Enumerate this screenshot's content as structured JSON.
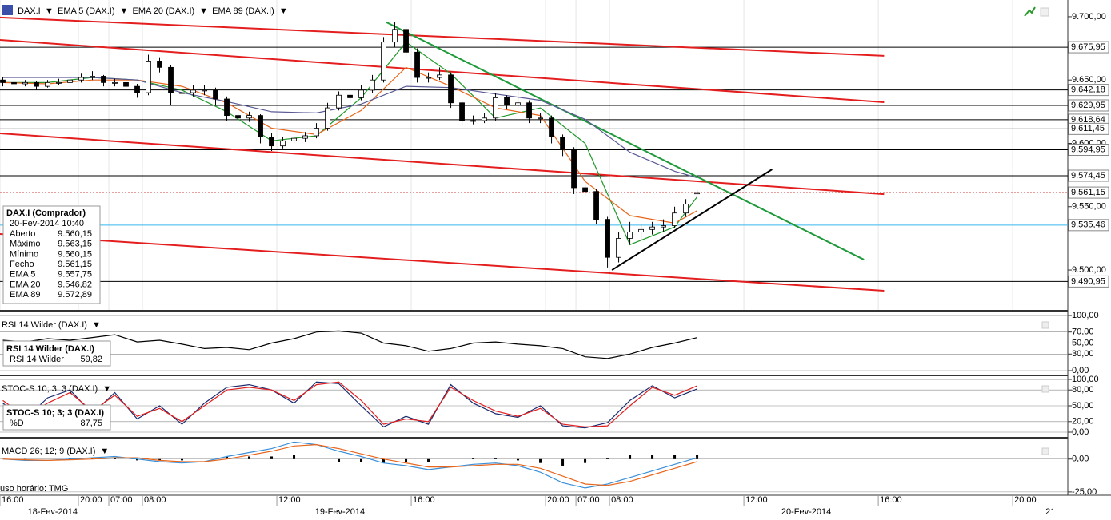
{
  "chart_data": {
    "type": "candlestick",
    "symbol": "DAX.I",
    "up_color": "#ffffff",
    "down_color": "#000000",
    "x": [
      0.5,
      2.5,
      4.5,
      6.5,
      8.5,
      10.5,
      12.5,
      14.5,
      16.5,
      18.5,
      20.5,
      22.5,
      24.5,
      26.5,
      28.5,
      30.5,
      32.5,
      34.5,
      36.5,
      38.5,
      40.5,
      42.5,
      44.5,
      46.5,
      48.5,
      50.5,
      52.5,
      54.5,
      56.5,
      58.5,
      60.5,
      62.5,
      64.5,
      66.5,
      68.5,
      70.5,
      72.5,
      74.5,
      76.5,
      78.5,
      80.5,
      82.5,
      84.5,
      86.5,
      88.5,
      90.5,
      92.5,
      94.5,
      96.5,
      98.5,
      100.5,
      102.5,
      104.5,
      106.5,
      108.5,
      110.5,
      112.5,
      114.5,
      116.5,
      118.5,
      120.5,
      122.5,
      124.5
    ],
    "ohlc": [
      [
        9650,
        9652,
        9645,
        9648
      ],
      [
        9648,
        9650,
        9644,
        9647
      ],
      [
        9647,
        9650,
        9645,
        9648
      ],
      [
        9648,
        9649,
        9642,
        9645
      ],
      [
        9645,
        9650,
        9644,
        9648
      ],
      [
        9648,
        9651,
        9646,
        9648
      ],
      [
        9648,
        9653,
        9647,
        9650
      ],
      [
        9650,
        9655,
        9648,
        9652
      ],
      [
        9652,
        9657,
        9650,
        9653
      ],
      [
        9653,
        9654,
        9645,
        9648
      ],
      [
        9648,
        9651,
        9645,
        9648
      ],
      [
        9648,
        9650,
        9642,
        9645
      ],
      [
        9645,
        9647,
        9636,
        9640
      ],
      [
        9640,
        9670,
        9638,
        9665
      ],
      [
        9665,
        9668,
        9656,
        9660
      ],
      [
        9660,
        9662,
        9630,
        9640
      ],
      [
        9640,
        9645,
        9636,
        9640
      ],
      [
        9640,
        9646,
        9637,
        9642
      ],
      [
        9642,
        9646,
        9638,
        9642
      ],
      [
        9642,
        9644,
        9630,
        9635
      ],
      [
        9635,
        9637,
        9618,
        9622
      ],
      [
        9622,
        9625,
        9616,
        9620
      ],
      [
        9620,
        9625,
        9617,
        9622
      ],
      [
        9622,
        9623,
        9600,
        9605
      ],
      [
        9605,
        9608,
        9594,
        9598
      ],
      [
        9598,
        9605,
        9596,
        9602
      ],
      [
        9602,
        9607,
        9600,
        9604
      ],
      [
        9604,
        9609,
        9601,
        9606
      ],
      [
        9606,
        9616,
        9604,
        9612
      ],
      [
        9612,
        9632,
        9610,
        9628
      ],
      [
        9628,
        9641,
        9626,
        9638
      ],
      [
        9638,
        9640,
        9632,
        9636
      ],
      [
        9636,
        9646,
        9634,
        9642
      ],
      [
        9642,
        9654,
        9640,
        9650
      ],
      [
        9650,
        9684,
        9648,
        9680
      ],
      [
        9680,
        9696,
        9676,
        9690
      ],
      [
        9690,
        9693,
        9668,
        9672
      ],
      [
        9672,
        9675,
        9648,
        9652
      ],
      [
        9652,
        9656,
        9648,
        9652
      ],
      [
        9652,
        9660,
        9650,
        9654
      ],
      [
        9654,
        9656,
        9628,
        9632
      ],
      [
        9632,
        9634,
        9614,
        9618
      ],
      [
        9618,
        9622,
        9615,
        9618
      ],
      [
        9618,
        9624,
        9616,
        9620
      ],
      [
        9620,
        9640,
        9618,
        9636
      ],
      [
        9636,
        9638,
        9627,
        9630
      ],
      [
        9630,
        9645,
        9628,
        9632
      ],
      [
        9632,
        9634,
        9616,
        9620
      ],
      [
        9620,
        9624,
        9616,
        9620
      ],
      [
        9620,
        9622,
        9600,
        9605
      ],
      [
        9605,
        9607,
        9590,
        9595
      ],
      [
        9595,
        9597,
        9560,
        9565
      ],
      [
        9565,
        9568,
        9558,
        9562
      ],
      [
        9562,
        9564,
        9536,
        9540
      ],
      [
        9540,
        9542,
        9502,
        9510
      ],
      [
        9510,
        9530,
        9506,
        9525
      ],
      [
        9525,
        9538,
        9520,
        9530
      ],
      [
        9530,
        9536,
        9524,
        9532
      ],
      [
        9532,
        9538,
        9528,
        9534
      ],
      [
        9534,
        9540,
        9530,
        9535
      ],
      [
        9535,
        9550,
        9533,
        9545
      ],
      [
        9545,
        9556,
        9542,
        9552
      ],
      [
        9560.15,
        9563.15,
        9560.15,
        9561.15
      ]
    ],
    "series": [
      {
        "name": "EMA 5 (DAX.I)",
        "color": "#1f9a2a",
        "x": [
          0.5,
          8.5,
          16.5,
          24.5,
          32.5,
          40.5,
          48.5,
          56.5,
          64.5,
          72.5,
          80.5,
          88.5,
          96.5,
          104.5,
          112.5,
          120.5,
          124.5
        ],
        "values": [
          9648,
          9648,
          9652,
          9650,
          9642,
          9625,
          9602,
          9606,
          9636,
          9680,
          9655,
          9620,
          9628,
          9600,
          9520,
          9534,
          9557.75
        ]
      },
      {
        "name": "EMA 20 (DAX.I)",
        "color": "#e8661c",
        "x": [
          0.5,
          8.5,
          16.5,
          24.5,
          32.5,
          40.5,
          48.5,
          56.5,
          64.5,
          72.5,
          80.5,
          88.5,
          96.5,
          104.5,
          112.5,
          120.5,
          124.5
        ],
        "values": [
          9648,
          9647,
          9650,
          9650,
          9645,
          9632,
          9612,
          9607,
          9626,
          9660,
          9645,
          9628,
          9622,
          9570,
          9543,
          9537,
          9546.82
        ]
      },
      {
        "name": "EMA 89 (DAX.I)",
        "color": "#5a5a96",
        "x": [
          0.5,
          8.5,
          16.5,
          24.5,
          32.5,
          40.5,
          48.5,
          56.5,
          64.5,
          72.5,
          80.5,
          88.5,
          96.5,
          104.5,
          112.5,
          120.5,
          124.5
        ],
        "values": [
          9652,
          9652,
          9652,
          9650,
          9640,
          9633,
          9625,
          9624,
          9631,
          9645,
          9644,
          9639,
          9634,
          9619,
          9593,
          9578,
          9572.89
        ]
      }
    ],
    "trendlines": [
      {
        "color": "#e41e1e",
        "x": [
          0,
          157.9
        ],
        "values": [
          9699.4,
          9669.1
        ]
      },
      {
        "color": "#e41e1e",
        "x": [
          0,
          157.9
        ],
        "values": [
          9681.7,
          9632.5
        ]
      },
      {
        "color": "#e41e1e",
        "x": [
          0,
          157.9
        ],
        "values": [
          9607.9,
          9559.9
        ]
      },
      {
        "color": "#e41e1e",
        "x": [
          0,
          157.9
        ],
        "values": [
          9528.4,
          9483.6
        ]
      },
      {
        "color": "#1f9a3a",
        "x": [
          69,
          154.3
        ],
        "values": [
          9695.6,
          9508.2
        ]
      },
      {
        "color": "#000000",
        "x": [
          109.3,
          137.9
        ],
        "values": [
          9500,
          9579.5
        ]
      }
    ],
    "xlim": [
      0,
      190.7
    ],
    "xticks": [
      {
        "value": 0,
        "label": "16:00"
      },
      {
        "value": 14,
        "label": "20:00"
      },
      {
        "value": 19.43,
        "label": "07:00"
      },
      {
        "value": 25.43,
        "label": "08:00"
      },
      {
        "value": 49.43,
        "label": "12:00"
      },
      {
        "value": 73.43,
        "label": "16:00"
      },
      {
        "value": 97.43,
        "label": "20:00"
      },
      {
        "value": 102.86,
        "label": "07:00"
      },
      {
        "value": 108.86,
        "label": "08:00"
      },
      {
        "value": 132.86,
        "label": "12:00"
      },
      {
        "value": 156.86,
        "label": "16:00"
      },
      {
        "value": 180.86,
        "label": "20:00"
      }
    ],
    "date_labels": [
      {
        "value": 9.4,
        "label": "18-Fev-2014"
      },
      {
        "value": 60.7,
        "label": "19-Fev-2014"
      },
      {
        "value": 144,
        "label": "20-Fev-2014"
      },
      {
        "value": 187.6,
        "label": "21"
      }
    ],
    "ylim": [
      9468.5,
      9713.2
    ],
    "yticks": [
      {
        "value": 9700,
        "label": "9.700,00"
      },
      {
        "value": 9650,
        "label": "9.650,00"
      },
      {
        "value": 9600,
        "label": "9.600,00"
      },
      {
        "value": 9550,
        "label": "9.550,00"
      },
      {
        "value": 9500,
        "label": "9.500,00"
      }
    ],
    "levels": [
      {
        "value": 9675.95,
        "label": "9.675,95",
        "color": "#000000"
      },
      {
        "value": 9642.18,
        "label": "9.642,18",
        "color": "#000000"
      },
      {
        "value": 9629.95,
        "label": "9.629,95",
        "color": "#000000"
      },
      {
        "value": 9618.64,
        "label": "9.618,64",
        "color": "#000000"
      },
      {
        "value": 9611.45,
        "label": "9.611,45",
        "color": "#000000"
      },
      {
        "value": 9594.95,
        "label": "9.594,95",
        "color": "#000000"
      },
      {
        "value": 9574.45,
        "label": "9.574,45",
        "color": "#000000"
      },
      {
        "value": 9535.46,
        "label": "9.535,46",
        "color": "#38b8f0"
      },
      {
        "value": 9490.95,
        "label": "9.490,95",
        "color": "#000000"
      }
    ],
    "current": {
      "value": 9561.15,
      "label": "9.561,15",
      "color": "#c00000"
    },
    "info_box": {
      "title": "DAX.I (Comprador)",
      "date": "20-Fev-2014 10:40",
      "rows": [
        [
          "Aberto",
          "9.560,15"
        ],
        [
          "Máximo",
          "9.563,15"
        ],
        [
          "Mínimo",
          "9.560,15"
        ],
        [
          "Fecho",
          "9.561,15"
        ],
        [
          "EMA 5",
          "9.557,75"
        ],
        [
          "EMA 20",
          "9.546,82"
        ],
        [
          "EMA 89",
          "9.572,89"
        ]
      ]
    },
    "timezone_note": "uso horário: TMG",
    "panes": [
      {
        "type": "line",
        "title": "RSI 14 Wilder (DAX.I)",
        "ylim": [
          -8.7,
          107.2
        ],
        "yticks": [
          {
            "value": 100,
            "label": "100,00"
          },
          {
            "value": 70,
            "label": "70,00"
          },
          {
            "value": 50,
            "label": "50,00"
          },
          {
            "value": 30,
            "label": "30,00"
          },
          {
            "value": 0,
            "label": "0,00"
          }
        ],
        "x": [
          0.5,
          4.5,
          8.5,
          12.5,
          16.5,
          20.5,
          24.5,
          28.5,
          32.5,
          36.5,
          40.5,
          44.5,
          48.5,
          52.5,
          56.5,
          60.5,
          64.5,
          68.5,
          72.5,
          76.5,
          80.5,
          84.5,
          88.5,
          92.5,
          96.5,
          100.5,
          104.5,
          108.5,
          112.5,
          116.5,
          120.5,
          124.5
        ],
        "series": [
          {
            "name": "RSI 14 Wilder",
            "color": "#000000",
            "values": [
              55,
              52,
              58,
              55,
              60,
              65,
              52,
              55,
              48,
              40,
              42,
              38,
              50,
              58,
              70,
              72,
              68,
              50,
              45,
              35,
              40,
              50,
              52,
              48,
              45,
              40,
              25,
              22,
              30,
              42,
              50,
              59.82
            ],
            "value_label": "59,82"
          }
        ],
        "info_title": "RSI 14 Wilder (DAX.I)"
      },
      {
        "type": "line",
        "title": "STOC-S 10; 3; 3 (DAX.I)",
        "ylim": [
          -10.6,
          107.6
        ],
        "yticks": [
          {
            "value": 100,
            "label": "100,00"
          },
          {
            "value": 80,
            "label": "80,00"
          },
          {
            "value": 50,
            "label": "50,00"
          },
          {
            "value": 20,
            "label": "20,00"
          },
          {
            "value": 0,
            "label": "0,00"
          }
        ],
        "x": [
          0.5,
          4.5,
          8.5,
          12.5,
          16.5,
          20.5,
          24.5,
          28.5,
          32.5,
          36.5,
          40.5,
          44.5,
          48.5,
          52.5,
          56.5,
          60.5,
          64.5,
          68.5,
          72.5,
          76.5,
          80.5,
          84.5,
          88.5,
          92.5,
          96.5,
          100.5,
          104.5,
          108.5,
          112.5,
          116.5,
          120.5,
          124.5
        ],
        "series": [
          {
            "color": "#1c2a6e",
            "values": [
              55,
              25,
              65,
              80,
              35,
              75,
              25,
              50,
              15,
              55,
              85,
              90,
              80,
              55,
              95,
              92,
              50,
              10,
              30,
              15,
              90,
              55,
              35,
              28,
              50,
              12,
              8,
              18,
              60,
              88,
              65,
              82
            ]
          },
          {
            "name": "%D",
            "color": "#e02020",
            "values": [
              60,
              30,
              55,
              75,
              40,
              70,
              30,
              45,
              20,
              50,
              80,
              85,
              80,
              60,
              90,
              95,
              60,
              15,
              25,
              20,
              85,
              60,
              40,
              30,
              45,
              15,
              10,
              12,
              50,
              85,
              70,
              87.75
            ],
            "value_label": "87,75"
          }
        ],
        "info_title": "STOC-S 10; 3; 3 (DAX.I)"
      },
      {
        "type": "macd",
        "title": "MACD 26; 12; 9 (DAX.I)",
        "ylim": [
          -27.5,
          16.25
        ],
        "yticks": [
          {
            "value": 0,
            "label": "0,00"
          },
          {
            "value": -25,
            "label": "-25,00"
          }
        ],
        "x": [
          0.5,
          4.5,
          8.5,
          12.5,
          16.5,
          20.5,
          24.5,
          28.5,
          32.5,
          36.5,
          40.5,
          44.5,
          48.5,
          52.5,
          56.5,
          60.5,
          64.5,
          68.5,
          72.5,
          76.5,
          80.5,
          84.5,
          88.5,
          92.5,
          96.5,
          100.5,
          104.5,
          108.5,
          112.5,
          116.5,
          120.5,
          124.5
        ],
        "series": [
          {
            "color": "#3a8fd8",
            "values": [
              0,
              -1,
              -1,
              0,
              1,
              2,
              0,
              -2,
              -3,
              -2,
              2,
              5,
              8,
              13,
              11,
              6,
              2,
              -3,
              -5,
              -8,
              -6,
              -4,
              -3,
              -5,
              -10,
              -18,
              -22,
              -19,
              -14,
              -9,
              -4,
              1
            ]
          },
          {
            "color": "#e8661c",
            "values": [
              0,
              -0.5,
              -1,
              -0.5,
              0,
              1,
              1,
              -1,
              -2,
              -2,
              0,
              3,
              6,
              10,
              11,
              8,
              4,
              0,
              -3,
              -6,
              -6,
              -5,
              -4,
              -4,
              -7,
              -13,
              -19,
              -20,
              -17,
              -12,
              -7,
              -2
            ]
          }
        ],
        "histogram": {
          "color": "#000000",
          "values": [
            0,
            -0.5,
            0,
            0.5,
            1,
            1,
            -1,
            -1,
            -1,
            0,
            2,
            2,
            2,
            3,
            0,
            -2,
            -2,
            -3,
            -2,
            -2,
            0,
            1,
            1,
            -1,
            -3,
            -5,
            -3,
            1,
            3,
            3,
            3,
            3
          ]
        }
      }
    ]
  }
}
